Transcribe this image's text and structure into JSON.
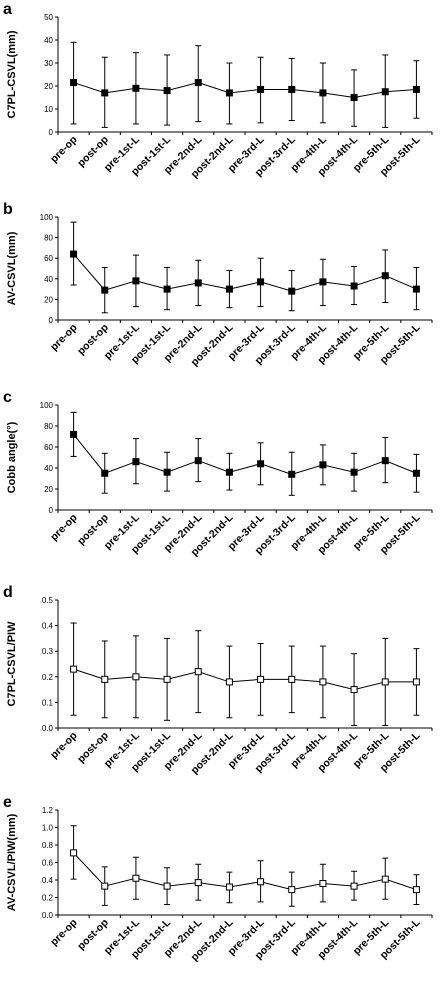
{
  "chart_data": [
    {
      "panel_letter": "a",
      "type": "line",
      "ylabel": "C7PL-CSVL(mm)",
      "ylim": [
        0,
        50
      ],
      "yticks": [
        0,
        10,
        20,
        30,
        40,
        50
      ],
      "marker": "filled-square",
      "categories": [
        "pre-op",
        "post-op",
        "pre-1st-L",
        "post-1st-L",
        "pre-2nd-L",
        "post-2nd-L",
        "pre-3rd-L",
        "post-3rd-L",
        "pre-4th-L",
        "post-4th-L",
        "pre-5th-L",
        "post-5th-L"
      ],
      "series": [
        {
          "values": [
            21.5,
            17,
            19,
            18,
            21.5,
            17,
            18.5,
            18.5,
            17,
            15,
            17.5,
            18.5
          ],
          "error_low": [
            3.5,
            2,
            3.5,
            3,
            4.5,
            3.5,
            4,
            5,
            4,
            2.5,
            2,
            6
          ],
          "error_high": [
            39,
            32.5,
            34.5,
            33.5,
            37.5,
            30,
            32.5,
            32,
            30,
            27,
            33.5,
            31
          ]
        }
      ]
    },
    {
      "panel_letter": "b",
      "type": "line",
      "ylabel": "AV-CSVL(mm)",
      "ylim": [
        0,
        100
      ],
      "yticks": [
        0,
        20,
        40,
        60,
        80,
        100
      ],
      "marker": "filled-square",
      "categories": [
        "pre-op",
        "post-op",
        "pre-1st-L",
        "post-1st-L",
        "pre-2nd-L",
        "post-2nd-L",
        "pre-3rd-L",
        "post-3rd-L",
        "pre-4th-L",
        "post-4th-L",
        "pre-5th-L",
        "post-5th-L"
      ],
      "series": [
        {
          "values": [
            64,
            29,
            38,
            30,
            36,
            30,
            37,
            28,
            37,
            33,
            43,
            30
          ],
          "error_low": [
            34,
            7,
            13,
            10,
            14,
            12,
            13,
            9,
            14,
            15,
            17,
            10
          ],
          "error_high": [
            95,
            51,
            63,
            51,
            58,
            48,
            60,
            48,
            59,
            52,
            68,
            51
          ]
        }
      ]
    },
    {
      "panel_letter": "c",
      "type": "line",
      "ylabel": "Cobb angle(°)",
      "ylim": [
        0,
        100
      ],
      "yticks": [
        0,
        20,
        40,
        60,
        80,
        100
      ],
      "marker": "filled-square",
      "categories": [
        "pre-op",
        "post-op",
        "pre-1st-L",
        "post-1st-L",
        "pre-2nd-L",
        "post-2nd-L",
        "pre-3rd-L",
        "post-3rd-L",
        "pre-4th-L",
        "post-4th-L",
        "pre-5th-L",
        "post-5th-L"
      ],
      "series": [
        {
          "values": [
            72,
            35,
            46,
            36,
            47,
            36,
            44,
            34,
            43,
            36,
            47,
            35
          ],
          "error_low": [
            51,
            16,
            25,
            18,
            27,
            19,
            24,
            14,
            24,
            18,
            26,
            17
          ],
          "error_high": [
            93,
            54,
            68,
            55,
            68,
            54,
            64,
            55,
            62,
            54,
            69,
            53
          ]
        }
      ]
    },
    {
      "panel_letter": "d",
      "type": "line",
      "ylabel": "C7PL-CSVL/PIW",
      "ylim": [
        0,
        0.5
      ],
      "yticks": [
        0.0,
        0.1,
        0.2,
        0.3,
        0.4,
        0.5
      ],
      "marker": "open-square",
      "categories": [
        "pre-op",
        "post-op",
        "pre-1st-L",
        "post-1st-L",
        "pre-2nd-L",
        "post-2nd-L",
        "pre-3rd-L",
        "post-3rd-L",
        "pre-4th-L",
        "post-4th-L",
        "pre-5th-L",
        "post-5th-L"
      ],
      "series": [
        {
          "values": [
            0.23,
            0.19,
            0.2,
            0.19,
            0.22,
            0.18,
            0.19,
            0.19,
            0.18,
            0.15,
            0.18,
            0.18
          ],
          "error_low": [
            0.05,
            0.04,
            0.04,
            0.03,
            0.06,
            0.04,
            0.05,
            0.06,
            0.04,
            0.01,
            0.01,
            0.05
          ],
          "error_high": [
            0.41,
            0.34,
            0.36,
            0.35,
            0.38,
            0.32,
            0.33,
            0.32,
            0.32,
            0.29,
            0.35,
            0.31
          ]
        }
      ]
    },
    {
      "panel_letter": "e",
      "type": "line",
      "ylabel": "AV-CSVL/PIW(mm)",
      "ylim": [
        0,
        1.2
      ],
      "yticks": [
        0.0,
        0.2,
        0.4,
        0.6,
        0.8,
        1.0,
        1.2
      ],
      "marker": "open-square",
      "categories": [
        "pre-op",
        "post-op",
        "pre-1st-L",
        "post-1st-L",
        "pre-2nd-L",
        "post-2nd-L",
        "pre-3rd-L",
        "post-3rd-L",
        "pre-4th-L",
        "post-4th-L",
        "pre-5th-L",
        "post-5th-L"
      ],
      "series": [
        {
          "values": [
            0.71,
            0.33,
            0.42,
            0.33,
            0.37,
            0.32,
            0.38,
            0.29,
            0.36,
            0.33,
            0.41,
            0.29
          ],
          "error_low": [
            0.41,
            0.11,
            0.18,
            0.12,
            0.17,
            0.14,
            0.15,
            0.1,
            0.15,
            0.17,
            0.18,
            0.12
          ],
          "error_high": [
            1.02,
            0.55,
            0.66,
            0.54,
            0.58,
            0.49,
            0.62,
            0.49,
            0.58,
            0.5,
            0.65,
            0.46
          ]
        }
      ]
    }
  ]
}
